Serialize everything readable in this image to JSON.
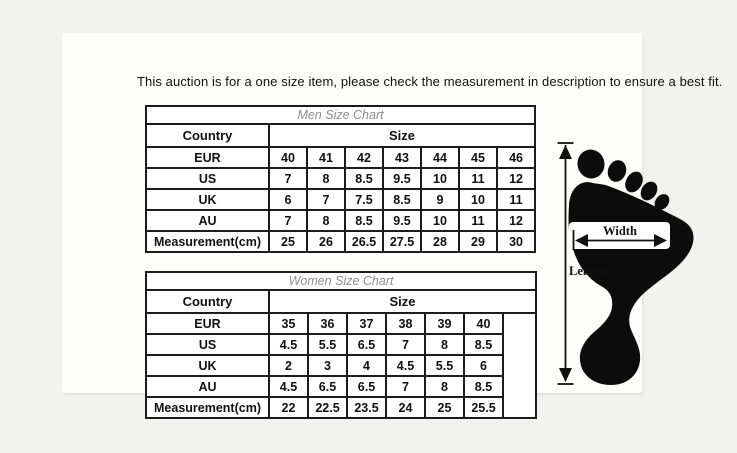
{
  "notice": "This auction is for a one size item, please check the measurement in description to ensure a best fit.",
  "men_chart": {
    "title": "Men Size Chart",
    "country_header": "Country",
    "size_header": "Size",
    "rows": [
      {
        "label": "EUR",
        "values": [
          "40",
          "41",
          "42",
          "43",
          "44",
          "45",
          "46"
        ]
      },
      {
        "label": "US",
        "values": [
          "7",
          "8",
          "8.5",
          "9.5",
          "10",
          "11",
          "12"
        ]
      },
      {
        "label": "UK",
        "values": [
          "6",
          "7",
          "7.5",
          "8.5",
          "9",
          "10",
          "11"
        ]
      },
      {
        "label": "AU",
        "values": [
          "7",
          "8",
          "8.5",
          "9.5",
          "10",
          "11",
          "12"
        ]
      },
      {
        "label": "Measurement(cm)",
        "values": [
          "25",
          "26",
          "26.5",
          "27.5",
          "28",
          "29",
          "30"
        ]
      }
    ]
  },
  "women_chart": {
    "title": "Women Size Chart",
    "country_header": "Country",
    "size_header": "Size",
    "has_empty_trailing_column": true,
    "rows": [
      {
        "label": "EUR",
        "values": [
          "35",
          "36",
          "37",
          "38",
          "39",
          "40"
        ]
      },
      {
        "label": "US",
        "values": [
          "4.5",
          "5.5",
          "6.5",
          "7",
          "8",
          "8.5"
        ]
      },
      {
        "label": "UK",
        "values": [
          "2",
          "3",
          "4",
          "4.5",
          "5.5",
          "6"
        ]
      },
      {
        "label": "AU",
        "values": [
          "4.5",
          "6.5",
          "6.5",
          "7",
          "8",
          "8.5"
        ]
      },
      {
        "label": "Measurement(cm)",
        "values": [
          "22",
          "22.5",
          "23.5",
          "24",
          "25",
          "25.5"
        ]
      }
    ]
  },
  "foot_diagram": {
    "width_label": "Width",
    "length_label": "Length"
  },
  "colors": {
    "background": "#f2f2f1",
    "panel": "#fdfdfc",
    "table_border": "#1c1c1c",
    "title_text": "#8d8d8d",
    "text": "#111111",
    "foot": "#0c0c0c"
  }
}
